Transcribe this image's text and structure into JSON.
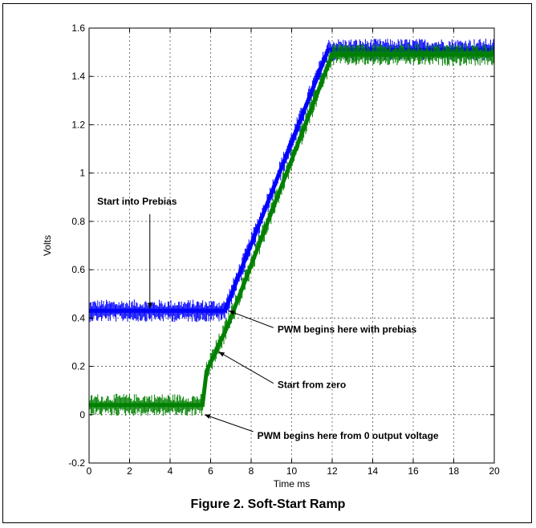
{
  "caption": "Figure 2. Soft-Start Ramp",
  "colors": {
    "prebias_trace": "#0000ff",
    "zero_start_trace": "#008000",
    "grid": "#555555"
  },
  "chart_data": {
    "type": "line",
    "title": "",
    "xlabel": "Time ms",
    "ylabel": "Volts",
    "xlim": [
      0,
      20
    ],
    "ylim": [
      -0.2,
      1.6
    ],
    "xticks": [
      "0",
      "2",
      "4",
      "6",
      "8",
      "10",
      "12",
      "14",
      "16",
      "18",
      "20"
    ],
    "yticks": [
      "-0.2",
      "0",
      "0.2",
      "0.4",
      "0.6",
      "0.8",
      "1",
      "1.2",
      "1.4",
      "1.6"
    ],
    "grid": true,
    "series": [
      {
        "color": "#0000ff",
        "x": [
          0,
          6.7,
          11.8,
          20
        ],
        "y": [
          0.43,
          0.43,
          1.51,
          1.51
        ]
      },
      {
        "color": "#008000",
        "x": [
          0,
          5.6,
          5.8,
          6.2,
          6.9,
          12.0,
          20
        ],
        "y": [
          0.04,
          0.04,
          0.18,
          0.25,
          0.38,
          1.49,
          1.49
        ]
      }
    ],
    "annotations": [
      {
        "text": "Start into Prebias",
        "x": 0.4,
        "y": 0.87,
        "arrow_to": [
          3.0,
          0.44
        ]
      },
      {
        "text": "PWM begins here with prebias",
        "x": 9.3,
        "y": 0.34,
        "arrow_to": [
          6.9,
          0.43
        ]
      },
      {
        "text": "Start from zero",
        "x": 9.3,
        "y": 0.11,
        "arrow_to": [
          6.4,
          0.26
        ]
      },
      {
        "text": "PWM begins here from 0 output voltage",
        "x": 8.3,
        "y": -0.1,
        "arrow_to": [
          5.7,
          0.0
        ]
      }
    ]
  }
}
